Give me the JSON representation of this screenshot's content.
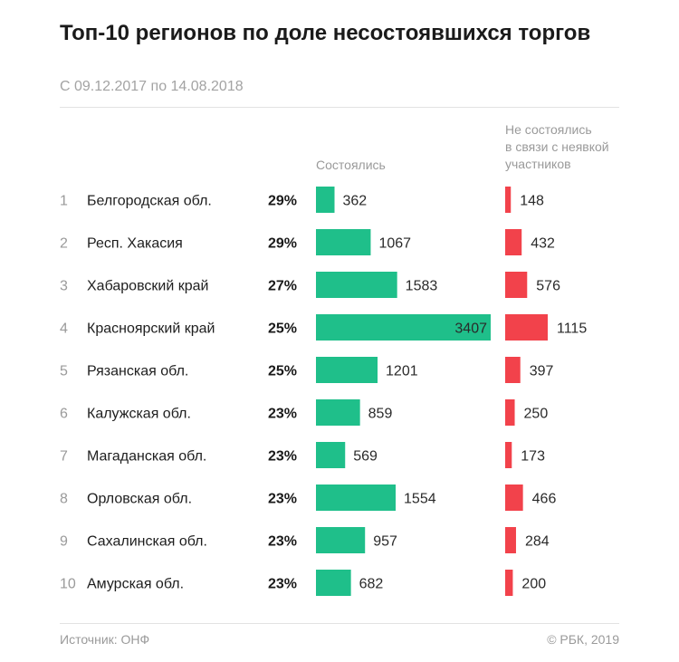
{
  "title": "Топ-10 регионов по доле несостоявшихся торгов",
  "subtitle": "С 09.12.2017 по 14.08.2018",
  "source": "Источник: ОНФ",
  "copyright": "© РБК, 2019",
  "chart_data": {
    "type": "bar",
    "title": "Топ-10 регионов по доле несостоявшихся торгов",
    "subtitle": "С 09.12.2017 по 14.08.2018",
    "ranks": [
      "1",
      "2",
      "3",
      "4",
      "5",
      "6",
      "7",
      "8",
      "9",
      "10"
    ],
    "categories": [
      "Белгородская обл.",
      "Респ. Хакасия",
      "Хабаровский край",
      "Красноярский край",
      "Рязанская обл.",
      "Калужская обл.",
      "Магаданская обл.",
      "Орловская обл.",
      "Сахалинская обл.",
      "Амурская обл."
    ],
    "shares": [
      "29%",
      "29%",
      "27%",
      "25%",
      "25%",
      "23%",
      "23%",
      "23%",
      "23%",
      "23%"
    ],
    "series": [
      {
        "name": "Состоялись",
        "color": "#1fbf8a",
        "values": [
          362,
          1067,
          1583,
          3407,
          1201,
          859,
          569,
          1554,
          957,
          682
        ]
      },
      {
        "name": "Не состоялись в связи с неявкой участников",
        "name_lines": [
          "Не состоялись",
          "в связи с неявкой",
          "участников"
        ],
        "color": "#f2424b",
        "values": [
          148,
          432,
          576,
          1115,
          397,
          250,
          173,
          466,
          284,
          200
        ]
      }
    ],
    "grid": false,
    "legend": "column headers"
  }
}
